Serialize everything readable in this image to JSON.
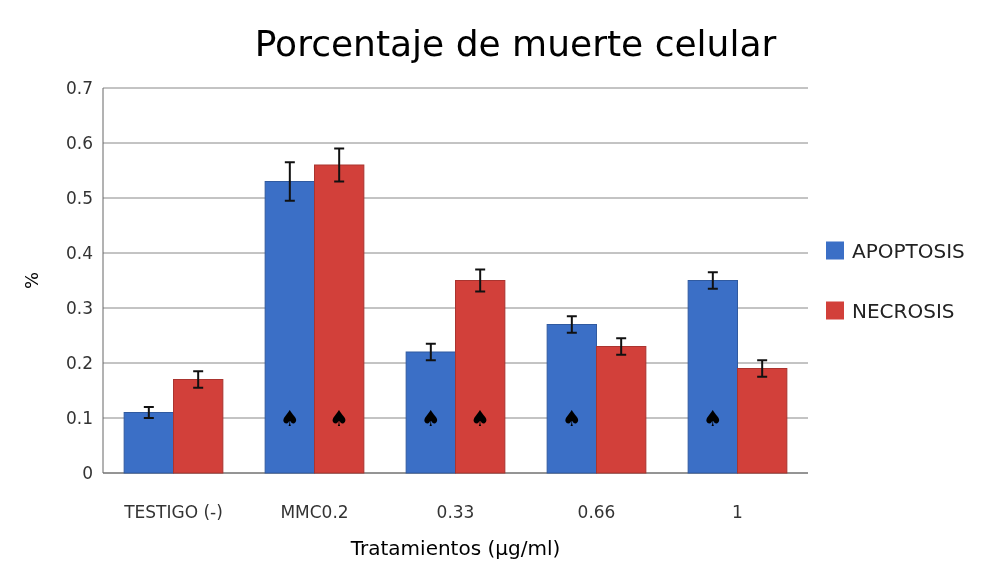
{
  "chart_data": {
    "type": "bar",
    "title": "Porcentaje de muerte celular",
    "xlabel": "Tratamientos (µg/ml)",
    "ylabel": "%",
    "categories": [
      "TESTIGO  (-)",
      "MMC0.2",
      "0.33",
      "0.66",
      "1"
    ],
    "series": [
      {
        "name": "APOPTOSIS",
        "color": "#3b6fc6",
        "values": [
          0.11,
          0.53,
          0.22,
          0.27,
          0.35
        ],
        "errors": [
          0.01,
          0.035,
          0.015,
          0.015,
          0.015
        ]
      },
      {
        "name": "NECROSIS",
        "color": "#d2403a",
        "values": [
          0.17,
          0.56,
          0.35,
          0.23,
          0.19
        ],
        "errors": [
          0.015,
          0.03,
          0.02,
          0.015,
          0.015
        ]
      }
    ],
    "ylim": [
      0,
      0.7
    ],
    "yticks": [
      0,
      0.1,
      0.2,
      0.3,
      0.4,
      0.5,
      0.6,
      0.7
    ],
    "grid": "y",
    "legend": "right",
    "annotations": [
      {
        "text": "♠",
        "x": "MMC0.2",
        "y": 0.1
      },
      {
        "text": "♠",
        "x": "MMC0.2",
        "y": 0.1
      },
      {
        "text": "♠",
        "x": "0.33",
        "y": 0.1
      },
      {
        "text": "♠",
        "x": "0.33",
        "y": 0.1
      },
      {
        "text": "♠",
        "x": "0.66",
        "y": 0.1
      },
      {
        "text": "♠",
        "x": "1",
        "y": 0.1
      }
    ]
  }
}
